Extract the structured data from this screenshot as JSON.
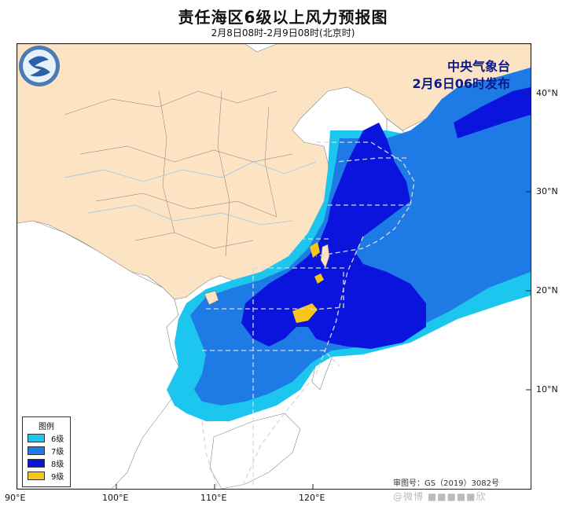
{
  "header": {
    "title": "责任海区6级以上风力预报图",
    "subtitle": "2月8日08时-2月9日08时(北京时)"
  },
  "issuer": {
    "line1": "中央气象台",
    "line2": "2月6日06时发布"
  },
  "axes": {
    "lon_labels": [
      "90°E",
      "100°E",
      "110°E",
      "120°E"
    ],
    "lat_labels": [
      "40°N",
      "30°N",
      "20°N",
      "10°N"
    ]
  },
  "legend": {
    "title": "图例",
    "items": [
      {
        "label": "6级",
        "color": "#1cc6ee"
      },
      {
        "label": "7级",
        "color": "#1e7be6"
      },
      {
        "label": "8级",
        "color": "#0a14dc"
      },
      {
        "label": "9级",
        "color": "#f7c514"
      }
    ]
  },
  "approval": "审图号：GS（2019）3082号",
  "watermark": "@微博 ■■■■■欣",
  "colors": {
    "land_china": "#fbe3c4",
    "sea": "#ffffff",
    "force6": "#1cc6ee",
    "force7": "#1e7be6",
    "force8": "#0a14dc",
    "force9": "#f7c514",
    "border": "#555555",
    "boundary_dash": "#cfd6e0"
  }
}
